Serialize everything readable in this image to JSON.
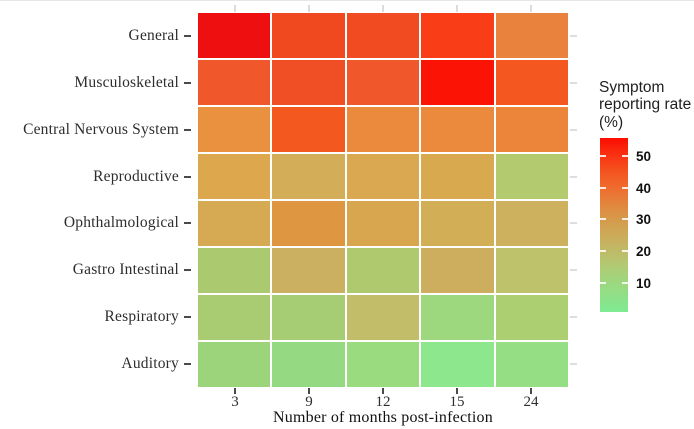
{
  "chart_data": {
    "type": "heatmap",
    "title": "",
    "xlabel": "Number of months post-infection",
    "ylabel": "",
    "x_tick_labels": [
      "3",
      "9",
      "12",
      "15",
      "24"
    ],
    "x_values_months": [
      3,
      9,
      12,
      15,
      24
    ],
    "categories": [
      "General",
      "Musculoskeletal",
      "Central Nervous System",
      "Reproductive",
      "Ophthalmological",
      "Gastro Intestinal",
      "Respiratory",
      "Auditory"
    ],
    "value_unit": "percent",
    "values": [
      [
        54,
        46,
        45.5,
        48.5,
        35.5
      ],
      [
        44,
        45,
        44,
        53.5,
        44
      ],
      [
        33,
        43,
        34,
        34,
        35
      ],
      [
        28.5,
        25.5,
        27,
        27,
        14.5
      ],
      [
        26,
        31,
        27,
        25,
        23.5
      ],
      [
        13,
        23,
        13,
        23.5,
        18
      ],
      [
        12.5,
        12,
        20.5,
        9,
        11.5
      ],
      [
        10,
        7.5,
        8,
        4.5,
        7
      ]
    ],
    "cell_colors": [
      [
        "#ee1010",
        "#f1491f",
        "#f14c21",
        "#f93d16",
        "#e8823c"
      ],
      [
        "#f0572a",
        "#f04e24",
        "#f0572a",
        "#fb1405",
        "#f4571f"
      ],
      [
        "#e9913f",
        "#f3581f",
        "#eb8a3d",
        "#eb8a3d",
        "#ec8439"
      ],
      [
        "#dda74d",
        "#d4ad58",
        "#d9a850",
        "#d9a950",
        "#b4ca6e"
      ],
      [
        "#d5aa53",
        "#df9641",
        "#d8a64e",
        "#d2ae57",
        "#cdb15e"
      ],
      [
        "#abc96f",
        "#ccb061",
        "#aec96e",
        "#cdae5e",
        "#bec26a"
      ],
      [
        "#a9cb72",
        "#a6cc74",
        "#c2bd69",
        "#9dd87e",
        "#accf72"
      ],
      [
        "#9cd47b",
        "#95da82",
        "#9adb80",
        "#8ce78d",
        "#96de83"
      ]
    ],
    "colorbar": {
      "title": "Symptom reporting rate (%)",
      "ticks": [
        50,
        40,
        30,
        20,
        10
      ],
      "domain_top": 55.7,
      "domain_bottom": 0.8,
      "gradient_stops": [
        {
          "value": 55.7,
          "color": "#fc0d00"
        },
        {
          "value": 50,
          "color": "#f93413"
        },
        {
          "value": 45,
          "color": "#f45520"
        },
        {
          "value": 40,
          "color": "#ef6c2d"
        },
        {
          "value": 35,
          "color": "#e3853d"
        },
        {
          "value": 30,
          "color": "#d69a4b"
        },
        {
          "value": 25,
          "color": "#ccab59"
        },
        {
          "value": 20,
          "color": "#bfba68"
        },
        {
          "value": 15,
          "color": "#b0cb74"
        },
        {
          "value": 10,
          "color": "#9dd77f"
        },
        {
          "value": 5,
          "color": "#8ce289"
        },
        {
          "value": 0.8,
          "color": "#7eea93"
        }
      ],
      "legend_position": "right"
    },
    "grid": "off"
  }
}
